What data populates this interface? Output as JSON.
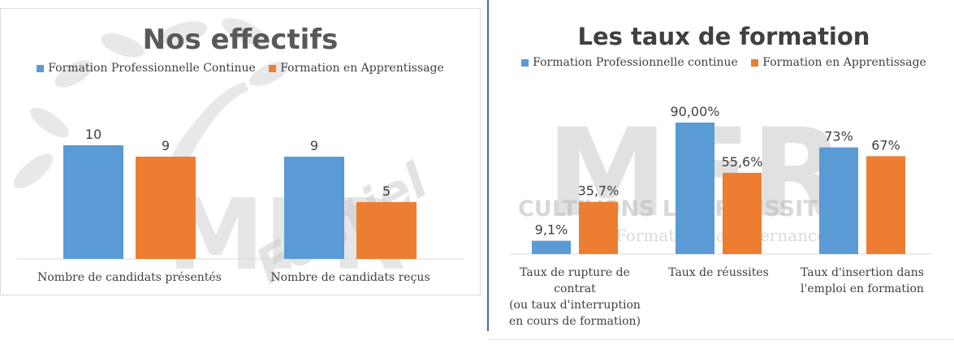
{
  "colors": {
    "blue": "#5b9bd5",
    "orange": "#ed7d31",
    "watermark": "#bdbdbd"
  },
  "watermark": {
    "logo": "MFR",
    "motto": "CULTIVONS LES RÉUSSITES",
    "tagline": "Formation par alternance",
    "place": "Fontiel"
  },
  "chart_data": [
    {
      "type": "bar",
      "title": "Nos effectifs",
      "series": [
        {
          "name": "Formation Professionnelle Continue",
          "color": "#5b9bd5",
          "values": [
            10,
            9
          ]
        },
        {
          "name": "Formation en Apprentissage",
          "color": "#ed7d31",
          "values": [
            9,
            5
          ]
        }
      ],
      "categories": [
        [
          "Nombre de candidats présentés"
        ],
        [
          "Nombre de candidats reçus"
        ]
      ],
      "value_labels": [
        [
          "10",
          "9"
        ],
        [
          "9",
          "5"
        ]
      ],
      "ylim": [
        0,
        14
      ],
      "grid": false,
      "legend": "top"
    },
    {
      "type": "bar",
      "title": "Les taux de formation",
      "series": [
        {
          "name": "Formation Professionnelle continue",
          "color": "#5b9bd5",
          "values": [
            9.1,
            90.0,
            73.0
          ]
        },
        {
          "name": "Formation en Apprentissage",
          "color": "#ed7d31",
          "values": [
            35.7,
            55.6,
            67.0
          ]
        }
      ],
      "categories": [
        [
          "Taux de rupture de",
          "contrat",
          "(ou taux d'interruption",
          "en cours de formation)"
        ],
        [
          "Taux de réussites"
        ],
        [
          "Taux d'insertion dans",
          "l'emploi en formation"
        ]
      ],
      "value_labels": [
        [
          "9,1%",
          "90,00%",
          "73%"
        ],
        [
          "35,7%",
          "55,6%",
          "67%"
        ]
      ],
      "ylim": [
        0,
        100
      ],
      "grid": false,
      "legend": "top"
    }
  ]
}
